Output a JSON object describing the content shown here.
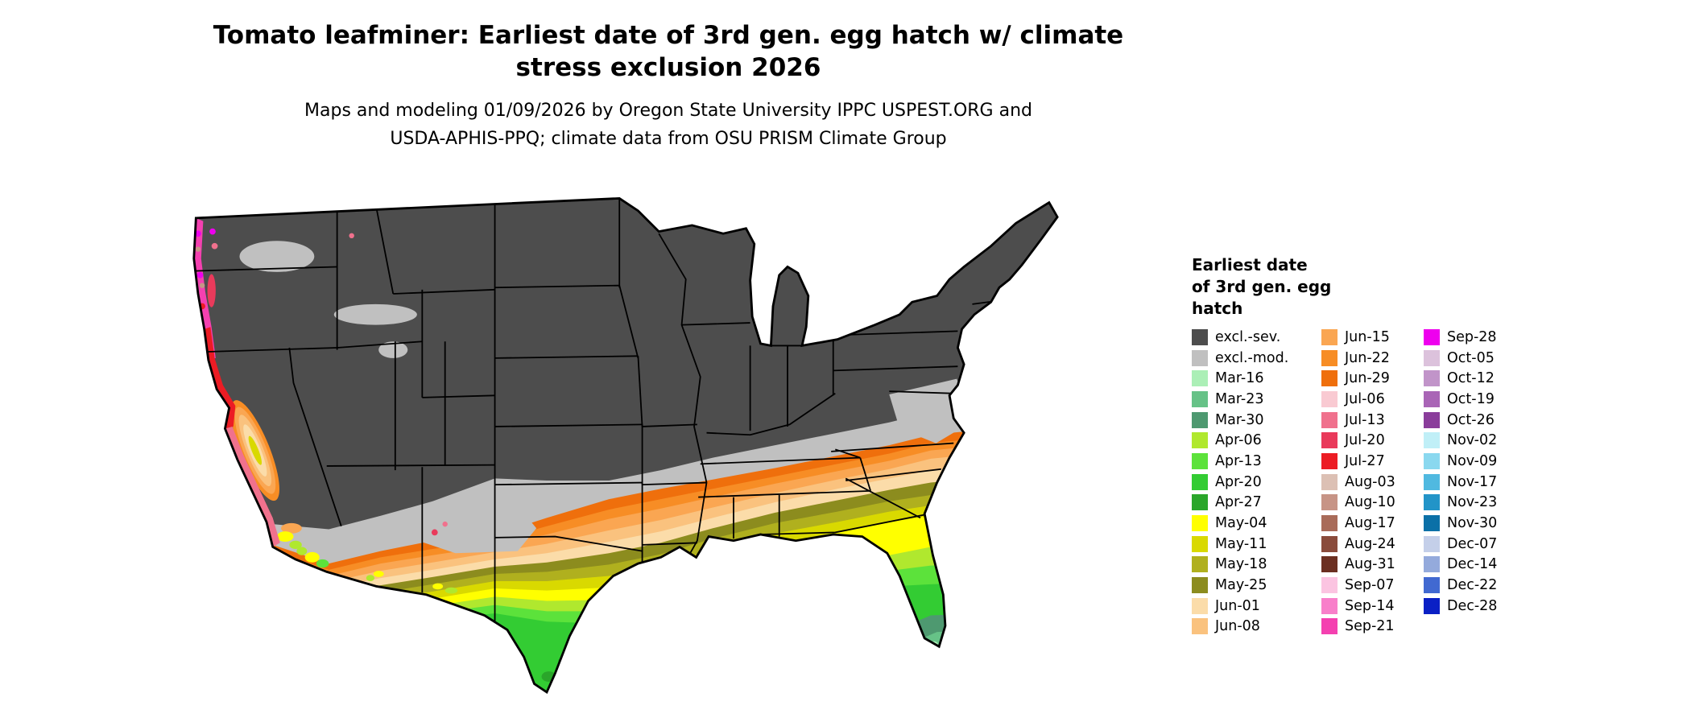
{
  "figure": {
    "title_line1": "Tomato leafminer: Earliest date of 3rd gen. egg hatch w/ climate",
    "title_line2": "stress exclusion 2026",
    "subtitle_line1": "Maps and modeling 01/09/2026 by Oregon State University IPPC USPEST.ORG and",
    "subtitle_line2": "USDA-APHIS-PPQ; climate data from OSU PRISM Climate Group"
  },
  "map": {
    "region": "Contiguous United States",
    "background_color": "#FFFFFF",
    "state_border_color": "#000000"
  },
  "legend": {
    "title_lines": [
      "Earliest date",
      "of 3rd gen. egg",
      "hatch"
    ],
    "columns": [
      [
        {
          "label": "excl.-sev.",
          "color": "#4D4D4D"
        },
        {
          "label": "excl.-mod.",
          "color": "#C0C0C0"
        },
        {
          "label": "Mar-16",
          "color": "#ABEFB6"
        },
        {
          "label": "Mar-23",
          "color": "#66C287"
        },
        {
          "label": "Mar-30",
          "color": "#4E9970"
        },
        {
          "label": "Apr-06",
          "color": "#B0E82E"
        },
        {
          "label": "Apr-13",
          "color": "#5CE23B"
        },
        {
          "label": "Apr-20",
          "color": "#33CC33"
        },
        {
          "label": "Apr-27",
          "color": "#2AA62A"
        },
        {
          "label": "May-04",
          "color": "#FFFF00"
        },
        {
          "label": "May-11",
          "color": "#D9D900"
        },
        {
          "label": "May-18",
          "color": "#B0B01E"
        },
        {
          "label": "May-25",
          "color": "#8C8C1E"
        },
        {
          "label": "Jun-01",
          "color": "#FBDCA9"
        },
        {
          "label": "Jun-08",
          "color": "#FAC27E"
        }
      ],
      [
        {
          "label": "Jun-15",
          "color": "#FAA652"
        },
        {
          "label": "Jun-22",
          "color": "#F78D25"
        },
        {
          "label": "Jun-29",
          "color": "#EF6F0C"
        },
        {
          "label": "Jul-06",
          "color": "#F9CAD2"
        },
        {
          "label": "Jul-13",
          "color": "#F0718D"
        },
        {
          "label": "Jul-20",
          "color": "#E93A5B"
        },
        {
          "label": "Jul-27",
          "color": "#EC1C24"
        },
        {
          "label": "Aug-03",
          "color": "#DCC0B4"
        },
        {
          "label": "Aug-10",
          "color": "#C79486"
        },
        {
          "label": "Aug-17",
          "color": "#A96B59"
        },
        {
          "label": "Aug-24",
          "color": "#8A4B3B"
        },
        {
          "label": "Aug-31",
          "color": "#6B2F21"
        },
        {
          "label": "Sep-07",
          "color": "#FBC4E1"
        },
        {
          "label": "Sep-14",
          "color": "#F87FCA"
        },
        {
          "label": "Sep-21",
          "color": "#F440B0"
        }
      ],
      [
        {
          "label": "Sep-28",
          "color": "#EE00EE"
        },
        {
          "label": "Oct-05",
          "color": "#DCC2DC"
        },
        {
          "label": "Oct-12",
          "color": "#C194C9"
        },
        {
          "label": "Oct-19",
          "color": "#A965B6"
        },
        {
          "label": "Oct-26",
          "color": "#8A3D9B"
        },
        {
          "label": "Nov-02",
          "color": "#C0EFF7"
        },
        {
          "label": "Nov-09",
          "color": "#8AD8EF"
        },
        {
          "label": "Nov-17",
          "color": "#50B9E0"
        },
        {
          "label": "Nov-23",
          "color": "#2294C8"
        },
        {
          "label": "Nov-30",
          "color": "#0B70A7"
        },
        {
          "label": "Dec-07",
          "color": "#C4CFE9"
        },
        {
          "label": "Dec-14",
          "color": "#94AADC"
        },
        {
          "label": "Dec-22",
          "color": "#4169D1"
        },
        {
          "label": "Dec-28",
          "color": "#0A20C5"
        }
      ]
    ]
  }
}
